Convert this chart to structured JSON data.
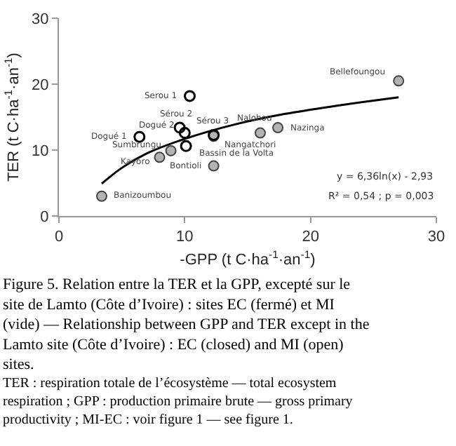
{
  "chart_data": {
    "type": "scatter",
    "xlabel": "-GPP (t C·ha$^{-1}$·an$^{-1}$)",
    "ylabel": "TER (t C·ha$^{-1}$·an$^{-1}$)",
    "xlim": [
      0,
      30
    ],
    "xticks": [
      0,
      10,
      20,
      30
    ],
    "ylim": [
      0,
      30
    ],
    "yticks": [
      0,
      10,
      20,
      30
    ],
    "marker": "circle",
    "series": [
      {
        "type": "scatter",
        "color": "#b3b3b3",
        "x": [
          27.0,
          17.4,
          16.0,
          12.3,
          8.9,
          8.0,
          12.3,
          3.4
        ],
        "values": [
          20.5,
          13.4,
          12.6,
          12.1,
          9.9,
          8.9,
          7.6,
          3.0
        ]
      },
      {
        "type": "scatter",
        "color": "#000000",
        "x": [
          10.4,
          9.6,
          10.0,
          6.4,
          12.3,
          10.1
        ],
        "values": [
          18.2,
          13.4,
          12.6,
          12.0,
          12.3,
          10.6
        ]
      },
      {
        "type": "line",
        "color": "#000000",
        "marker": "none",
        "x": [
          3.4,
          5,
          7,
          10,
          14,
          18,
          22,
          27
        ],
        "values": [
          4.9,
          7.3,
          9.5,
          11.7,
          13.9,
          15.5,
          16.7,
          18.0
        ]
      }
    ],
    "annotations": [
      {
        "text": "Bellefoungou",
        "x": 27.0,
        "y": 20.5
      },
      {
        "text": "Nazinga",
        "x": 17.4,
        "y": 13.4
      },
      {
        "text": "Nalohou",
        "x": 16.0,
        "y": 12.6
      },
      {
        "text": "Nangatchori",
        "x": 12.3,
        "y": 12.1
      },
      {
        "text": "Sumbrungu",
        "x": 8.9,
        "y": 9.9
      },
      {
        "text": "Kayoro",
        "x": 8.0,
        "y": 8.9
      },
      {
        "text": "Bontioli",
        "x": 12.3,
        "y": 7.6
      },
      {
        "text": "Banizoumbou",
        "x": 3.4,
        "y": 3.0
      },
      {
        "text": "Serou 1",
        "x": 10.4,
        "y": 18.2
      },
      {
        "text": "Sérou 2",
        "x": 9.6,
        "y": 13.4
      },
      {
        "text": "Dogué 2",
        "x": 10.0,
        "y": 12.6
      },
      {
        "text": "Dogué 1",
        "x": 6.4,
        "y": 12.0
      },
      {
        "text": "Sérou 3",
        "x": 12.3,
        "y": 12.3
      },
      {
        "text": "Bassin de la Volta",
        "x": 10.1,
        "y": 10.6
      },
      "y = 6,36ln(x) - 2,93",
      "R² = 0,54 ; p = 0,003",
      "Figure 5. Relation entre la TER et la GPP, excepté sur le site de Lamto (Côte d’Ivoire) : sites EC (fermé) et MI (vide) — Relationship between GPP and TER except in the Lamto site (Côte d’Ivoire) : EC (closed) and MI (open) sites.",
      "TER : respiration totale de l’écosystème — total ecosystem respiration ; GPP : production primaire brute — gross primary productivity ; MI-EC : voir figure 1 — see figure 1."
    ]
  }
}
